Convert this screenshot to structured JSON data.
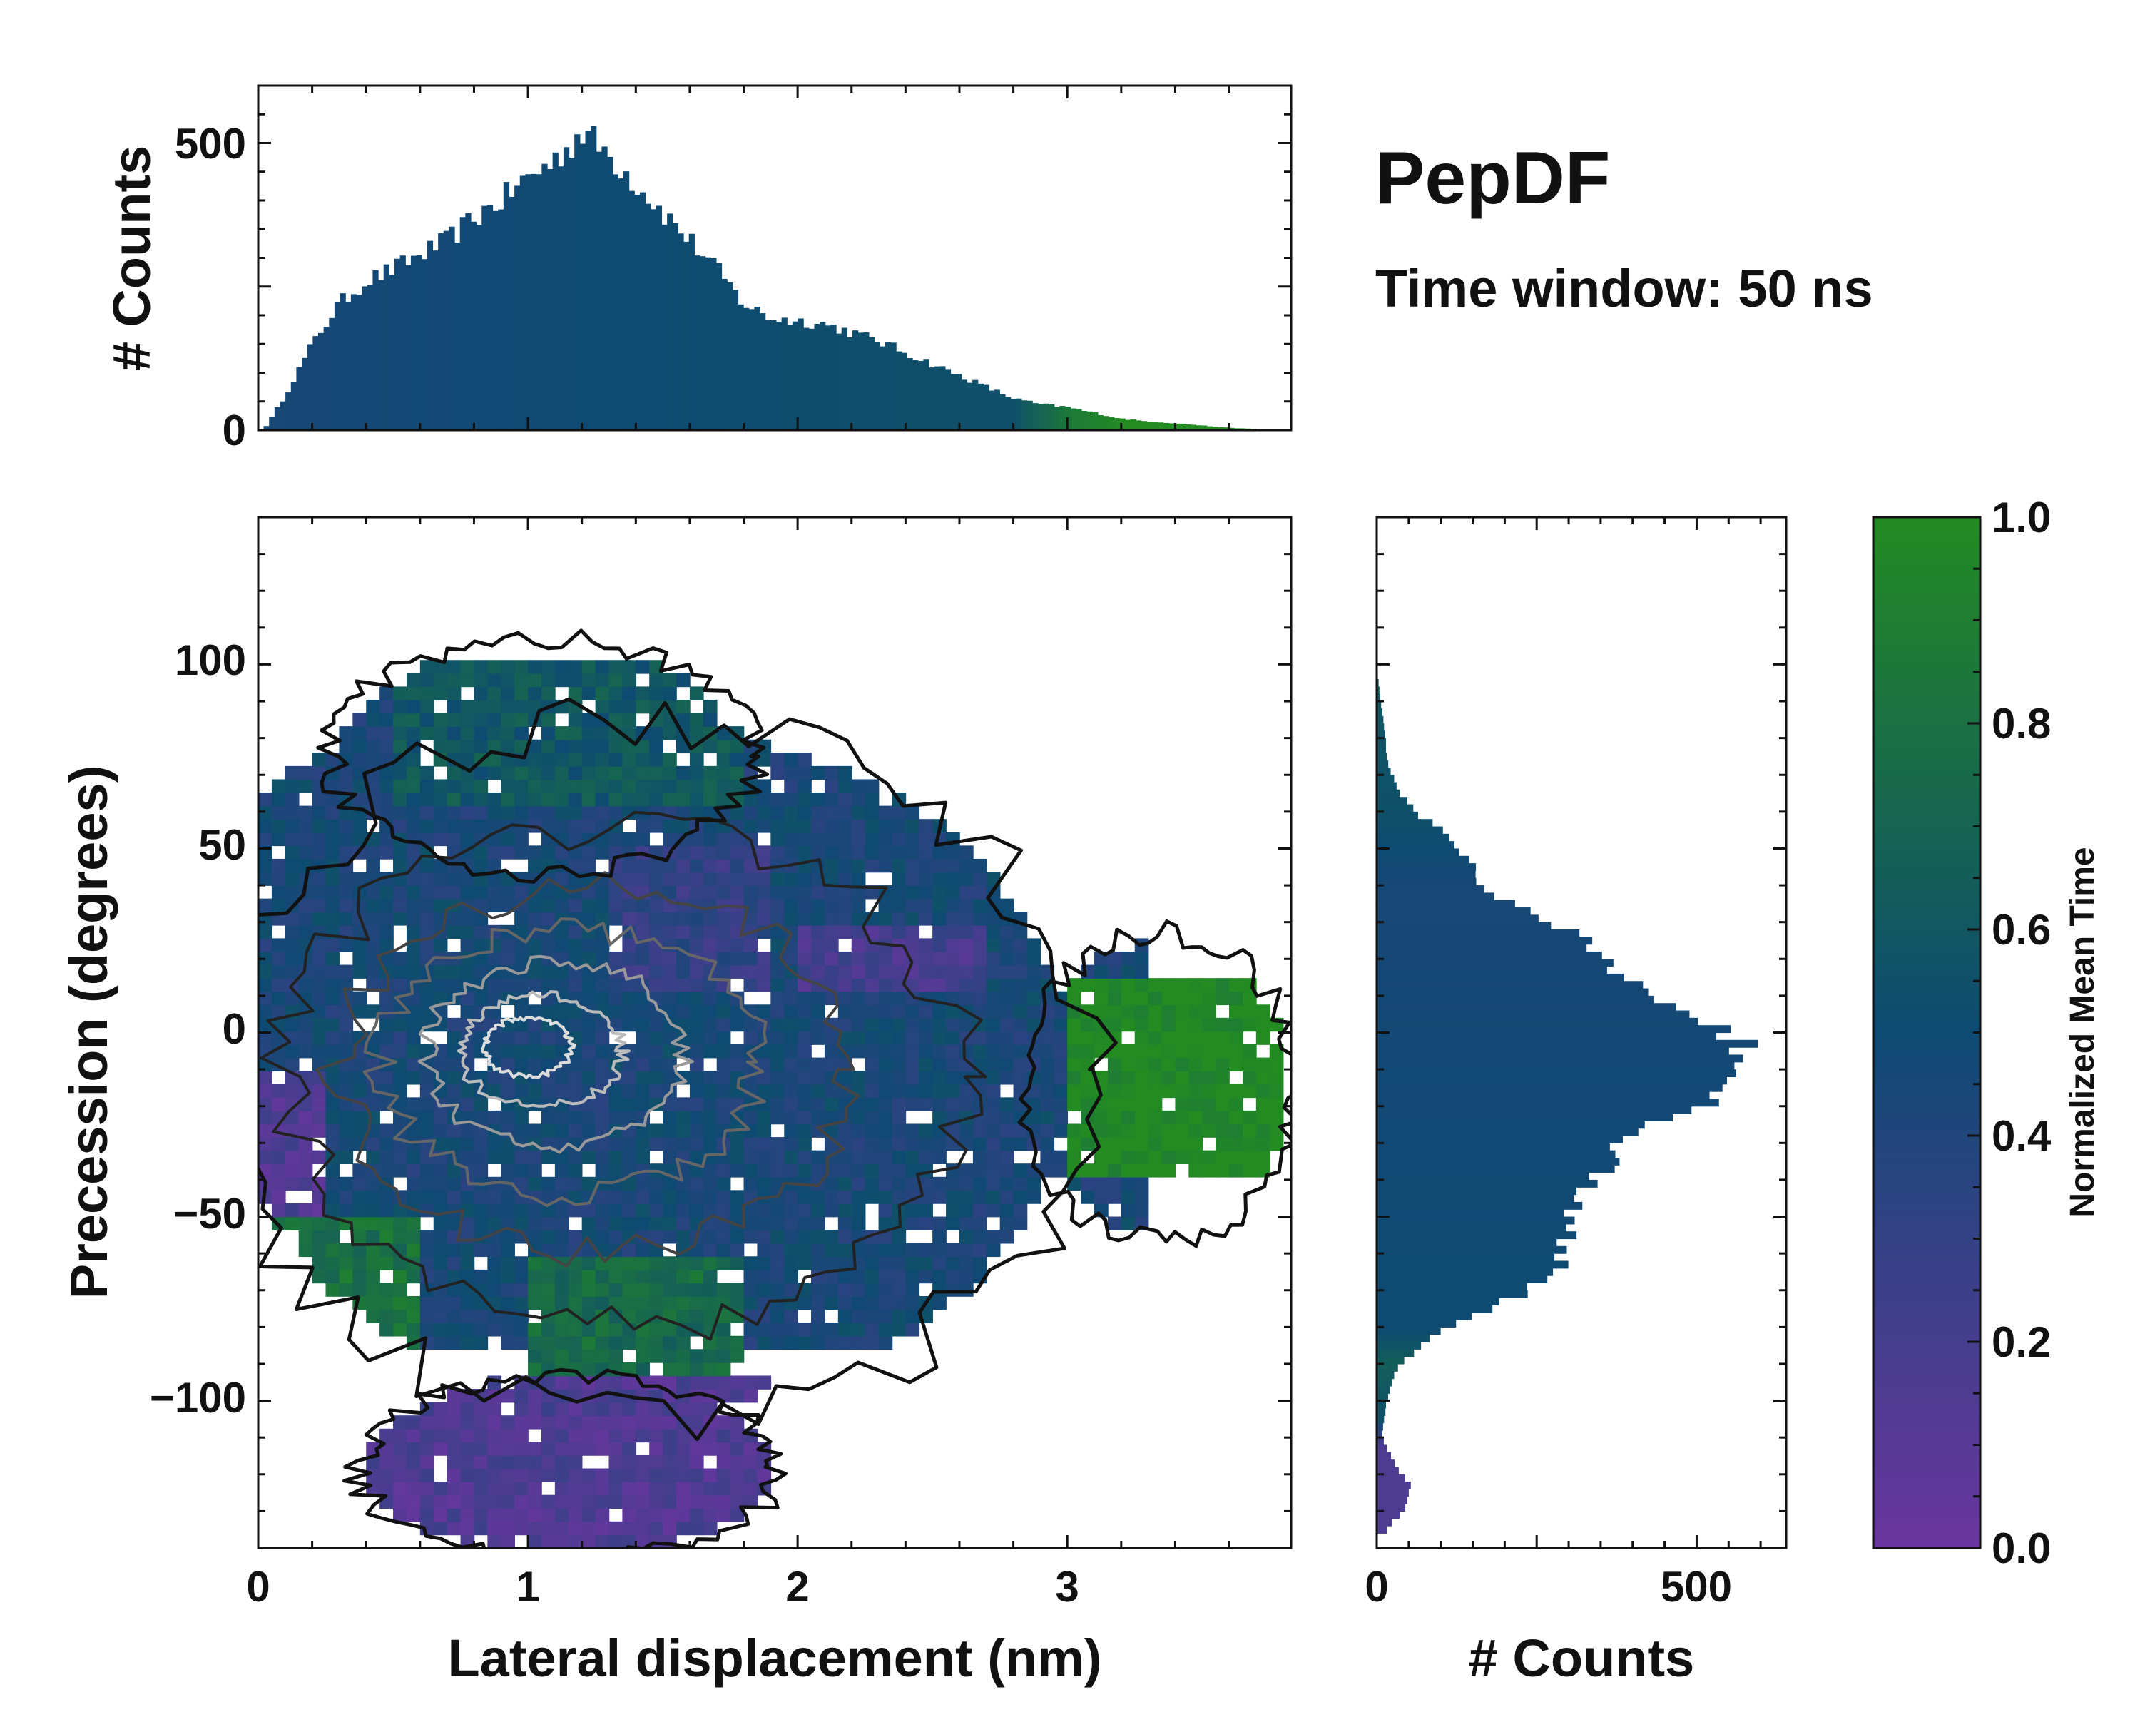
{
  "title": "PepDF",
  "subtitle": "Time window: 50 ns",
  "colors": {
    "low": "#6a35a0",
    "mid": "#0e4a72",
    "high": "#228b22",
    "contour_dark": "#111111",
    "contour_light": "#dddddd"
  },
  "chart_data": [
    {
      "id": "top-histogram",
      "type": "bar",
      "ylabel": "# Counts",
      "xlim": [
        0,
        3.83
      ],
      "ylim": [
        0,
        600
      ],
      "yticks": [
        0,
        500
      ],
      "ytick_labels": [
        "0",
        "500"
      ],
      "x_range": [
        0.02,
        3.78
      ],
      "bin_count": 186,
      "profile": [
        {
          "x": 0.02,
          "y": 0
        },
        {
          "x": 0.1,
          "y": 60
        },
        {
          "x": 0.2,
          "y": 150
        },
        {
          "x": 0.3,
          "y": 220
        },
        {
          "x": 0.4,
          "y": 260
        },
        {
          "x": 0.5,
          "y": 280
        },
        {
          "x": 0.6,
          "y": 305
        },
        {
          "x": 0.7,
          "y": 330
        },
        {
          "x": 0.8,
          "y": 370
        },
        {
          "x": 0.9,
          "y": 400
        },
        {
          "x": 1.0,
          "y": 440
        },
        {
          "x": 1.1,
          "y": 470
        },
        {
          "x": 1.2,
          "y": 520
        },
        {
          "x": 1.3,
          "y": 480
        },
        {
          "x": 1.4,
          "y": 430
        },
        {
          "x": 1.5,
          "y": 380
        },
        {
          "x": 1.6,
          "y": 330
        },
        {
          "x": 1.7,
          "y": 280
        },
        {
          "x": 1.8,
          "y": 220
        },
        {
          "x": 1.9,
          "y": 195
        },
        {
          "x": 2.0,
          "y": 190
        },
        {
          "x": 2.1,
          "y": 185
        },
        {
          "x": 2.2,
          "y": 170
        },
        {
          "x": 2.3,
          "y": 155
        },
        {
          "x": 2.4,
          "y": 135
        },
        {
          "x": 2.5,
          "y": 115
        },
        {
          "x": 2.6,
          "y": 95
        },
        {
          "x": 2.7,
          "y": 75
        },
        {
          "x": 2.8,
          "y": 55
        },
        {
          "x": 2.9,
          "y": 45
        },
        {
          "x": 3.0,
          "y": 40
        },
        {
          "x": 3.1,
          "y": 30
        },
        {
          "x": 3.2,
          "y": 20
        },
        {
          "x": 3.3,
          "y": 15
        },
        {
          "x": 3.4,
          "y": 12
        },
        {
          "x": 3.5,
          "y": 8
        },
        {
          "x": 3.6,
          "y": 4
        },
        {
          "x": 3.7,
          "y": 2
        },
        {
          "x": 3.78,
          "y": 0
        }
      ],
      "color_profile": [
        {
          "x": 0.0,
          "t": 0.45
        },
        {
          "x": 2.8,
          "t": 0.55
        },
        {
          "x": 3.0,
          "t": 0.85
        },
        {
          "x": 3.2,
          "t": 1.0
        },
        {
          "x": 3.8,
          "t": 1.0
        }
      ]
    },
    {
      "id": "main-2d-histogram",
      "type": "heatmap",
      "xlabel": "Lateral displacement (nm)",
      "ylabel": "Precession (degrees)",
      "xlim": [
        0,
        3.83
      ],
      "ylim": [
        -140,
        140
      ],
      "xticks": [
        0,
        1,
        2,
        3
      ],
      "xtick_labels": [
        "0",
        "1",
        "2",
        "3"
      ],
      "yticks": [
        -100,
        -50,
        0,
        50,
        100
      ],
      "ytick_labels": [
        "−100",
        "−50",
        "0",
        "50",
        "100"
      ],
      "value": "Normalized Mean Time",
      "contours": true,
      "regions": [
        {
          "x": [
            0.0,
            3.3
          ],
          "y": [
            -85,
            100
          ],
          "t": 0.45
        },
        {
          "x": [
            0.0,
            0.25
          ],
          "y": [
            -50,
            -10
          ],
          "t": 0.15
        },
        {
          "x": [
            0.0,
            0.6
          ],
          "y": [
            -85,
            -50
          ],
          "t": 0.8
        },
        {
          "x": [
            1.0,
            1.8
          ],
          "y": [
            -100,
            -60
          ],
          "t": 0.75
        },
        {
          "x": [
            2.0,
            2.7
          ],
          "y": [
            10,
            30
          ],
          "t": 0.2
        },
        {
          "x": [
            1.3,
            1.9
          ],
          "y": [
            10,
            50
          ],
          "t": 0.3
        },
        {
          "x": [
            0.5,
            1.8
          ],
          "y": [
            60,
            100
          ],
          "t": 0.6
        },
        {
          "x": [
            3.0,
            3.8
          ],
          "y": [
            -40,
            15
          ],
          "t": 1.0
        },
        {
          "x": [
            0.4,
            1.9
          ],
          "y": [
            -140,
            -95
          ],
          "t": 0.15
        }
      ]
    },
    {
      "id": "right-histogram",
      "type": "bar",
      "orientation": "horizontal",
      "xlabel": "# Counts",
      "xlim": [
        0,
        640
      ],
      "ylim": [
        -140,
        140
      ],
      "xticks": [
        0,
        500
      ],
      "xtick_labels": [
        "0",
        "500"
      ],
      "y_range": [
        -136,
        100
      ],
      "bin_count": 118,
      "profile": [
        {
          "y": -136,
          "x": 10
        },
        {
          "y": -130,
          "x": 40
        },
        {
          "y": -124,
          "x": 55
        },
        {
          "y": -118,
          "x": 30
        },
        {
          "y": -110,
          "x": 8
        },
        {
          "y": -100,
          "x": 15
        },
        {
          "y": -92,
          "x": 30
        },
        {
          "y": -86,
          "x": 60
        },
        {
          "y": -80,
          "x": 110
        },
        {
          "y": -75,
          "x": 175
        },
        {
          "y": -70,
          "x": 240
        },
        {
          "y": -65,
          "x": 285
        },
        {
          "y": -60,
          "x": 295
        },
        {
          "y": -55,
          "x": 295
        },
        {
          "y": -50,
          "x": 300
        },
        {
          "y": -45,
          "x": 320
        },
        {
          "y": -40,
          "x": 340
        },
        {
          "y": -35,
          "x": 365
        },
        {
          "y": -30,
          "x": 390
        },
        {
          "y": -25,
          "x": 420
        },
        {
          "y": -20,
          "x": 500
        },
        {
          "y": -15,
          "x": 540
        },
        {
          "y": -10,
          "x": 550
        },
        {
          "y": -5,
          "x": 580
        },
        {
          "y": 0,
          "x": 540
        },
        {
          "y": 5,
          "x": 490
        },
        {
          "y": 10,
          "x": 430
        },
        {
          "y": 15,
          "x": 380
        },
        {
          "y": 20,
          "x": 360
        },
        {
          "y": 25,
          "x": 320
        },
        {
          "y": 30,
          "x": 280
        },
        {
          "y": 35,
          "x": 210
        },
        {
          "y": 40,
          "x": 150
        },
        {
          "y": 45,
          "x": 150
        },
        {
          "y": 50,
          "x": 120
        },
        {
          "y": 55,
          "x": 100
        },
        {
          "y": 60,
          "x": 60
        },
        {
          "y": 65,
          "x": 35
        },
        {
          "y": 70,
          "x": 25
        },
        {
          "y": 75,
          "x": 15
        },
        {
          "y": 80,
          "x": 15
        },
        {
          "y": 85,
          "x": 10
        },
        {
          "y": 90,
          "x": 6
        },
        {
          "y": 95,
          "x": 3
        },
        {
          "y": 100,
          "x": 0
        }
      ],
      "color_profile": [
        {
          "y": -140,
          "t": 0.15
        },
        {
          "y": -112,
          "t": 0.15
        },
        {
          "y": -105,
          "t": 0.55
        },
        {
          "y": -90,
          "t": 0.65
        },
        {
          "y": -80,
          "t": 0.5
        },
        {
          "y": 40,
          "t": 0.45
        },
        {
          "y": 60,
          "t": 0.55
        },
        {
          "y": 100,
          "t": 0.6
        }
      ]
    },
    {
      "id": "colorbar",
      "type": "colorbar",
      "label": "Normalized Mean Time",
      "range": [
        0,
        1
      ],
      "ticks": [
        0,
        0.2,
        0.4,
        0.6,
        0.8,
        1
      ],
      "tick_labels": [
        "0.0",
        "0.2",
        "0.4",
        "0.6",
        "0.8",
        "1.0"
      ]
    }
  ]
}
